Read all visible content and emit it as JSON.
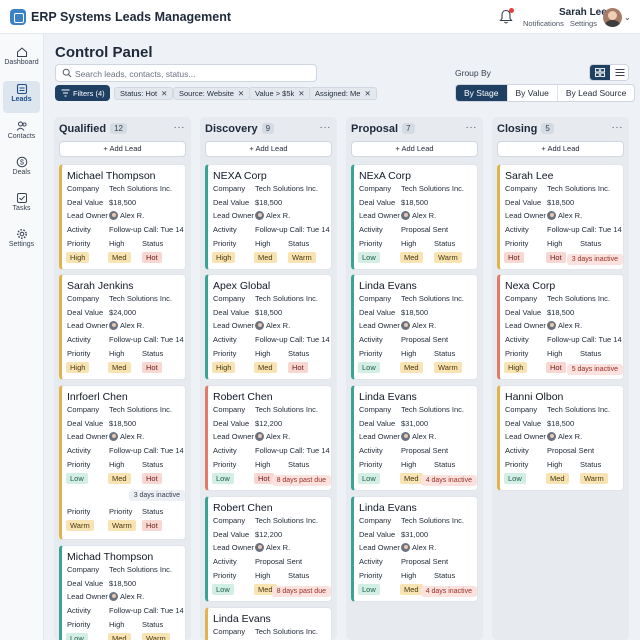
{
  "app": {
    "title": "ERP Systems",
    "module": "Leads Management"
  },
  "user": {
    "name": "Sarah Lee",
    "notifications_label": "Notifications",
    "settings_label": "Settings"
  },
  "sidebar": [
    {
      "label": "Dashboard",
      "icon": "home-icon",
      "active": false
    },
    {
      "label": "Leads",
      "icon": "leads-icon",
      "active": true
    },
    {
      "label": "Contacts",
      "icon": "contacts-icon",
      "active": false
    },
    {
      "label": "Deals",
      "icon": "dollar-icon",
      "active": false
    },
    {
      "label": "Tasks",
      "icon": "tasks-icon",
      "active": false
    },
    {
      "label": "Settings",
      "icon": "gear-icon",
      "active": false
    }
  ],
  "page": {
    "title": "Control Panel"
  },
  "search": {
    "placeholder": "Search leads, contacts, status..."
  },
  "filters": {
    "button_label": "Filters (4)",
    "chips": [
      "Status: Hot",
      "Source: Website",
      "Value > $5k",
      "Assigned: Me"
    ]
  },
  "group_by": {
    "label": "Group By",
    "options": [
      "By Stage",
      "By Value",
      "By Lead Source"
    ],
    "selected": "By Stage"
  },
  "labels": {
    "add_lead": "+ Add Lead",
    "company": "Company",
    "deal_value": "Deal Value",
    "lead_owner": "Lead Owner",
    "activity": "Activity",
    "priority": "Priority",
    "status": "Status"
  },
  "columns": [
    {
      "title": "Qualified",
      "count": "12",
      "cards": [
        {
          "name": "Michael Thompson",
          "company": "Tech Solutions Inc.",
          "value": "$18,500",
          "owner": "Alex R.",
          "activity_label": "Activity",
          "activity": "Follow-up Call: Tue 14",
          "priority_label": "Priority",
          "status_label": "Status",
          "priority_val": "High",
          "tags": [
            "High",
            "Med",
            "Hot"
          ],
          "accent": "gold"
        },
        {
          "name": "Sarah Jenkins",
          "company": "Tech Solutions Inc.",
          "value": "$24,000",
          "owner": "Alex R.",
          "activity_label": "Activity",
          "activity": "Follow-up Call: Tue 14",
          "priority_label": "Priority",
          "status_label": "Status",
          "priority_val": "High",
          "tags": [
            "High",
            "Med",
            "Hot"
          ],
          "accent": "gold"
        },
        {
          "name": "Inrfoerl Chen",
          "company": "Tech Solutions Inc.",
          "value": "$18,500",
          "owner": "Alex R.",
          "activity_label": "Activity",
          "activity": "Follow-up Call: Tue 14",
          "priority_label": "Priority",
          "status_label": "Status",
          "priority_val": "High",
          "tags": [
            "Low",
            "Med",
            "Hot"
          ],
          "warning": "3 days inactive",
          "warning_type": "gray",
          "extra_row": {
            "priority_label": "Priority",
            "priority_val": "Priority",
            "status_label": "Status",
            "tags": [
              "Warm",
              "Warm",
              "Hot"
            ]
          },
          "accent": "gold"
        },
        {
          "name": "Michad Thompson",
          "company": "Tech Solutions Inc.",
          "value": "$18,500",
          "owner": "Alex R.",
          "activity_label": "Activity",
          "activity": "Follow-up Call: Tue 14",
          "priority_label": "Priority",
          "status_label": "Status",
          "priority_val": "High",
          "tags": [
            "Low",
            "Med",
            "Warm"
          ],
          "accent": "teal"
        }
      ]
    },
    {
      "title": "Discovery",
      "count": "9",
      "cards": [
        {
          "name": "NEXA Corp",
          "company": "Tech Solutions Inc.",
          "value": "$18,500",
          "owner": "Alex R.",
          "activity_label": "Activity",
          "activity": "Follow-up Call: Tue 14",
          "priority_label": "Priority",
          "status_label": "Status",
          "priority_val": "High",
          "tags": [
            "High",
            "Med",
            "Warm"
          ],
          "accent": "teal"
        },
        {
          "name": "Apex Global",
          "company": "Tech Solutions Inc.",
          "value": "$18,500",
          "owner": "Alex R.",
          "activity_label": "Activity",
          "activity": "Follow-up Call: Tue 14",
          "priority_label": "Priority",
          "status_label": "Status",
          "priority_val": "High",
          "tags": [
            "High",
            "Med",
            "Hot"
          ],
          "accent": "teal"
        },
        {
          "name": "Robert Chen",
          "company": "Tech Solutions Inc.",
          "value": "$12,200",
          "owner": "Alex R.",
          "activity_label": "Activity",
          "activity": "Follow-up Call: Tue 14",
          "priority_label": "Priority",
          "status_label": "Status",
          "priority_val": "High",
          "tags": [
            "Low",
            "Hot"
          ],
          "warning": "8 days past due",
          "warning_type": "red",
          "accent": "red"
        },
        {
          "name": "Robert Chen",
          "company": "Tech Solutions Inc.",
          "value": "$12,200",
          "owner": "Alex R.",
          "activity_label": "Activity",
          "activity": "Proposal Sent",
          "priority_label": "Priority",
          "status_label": "Status",
          "priority_val": "High",
          "tags": [
            "Low",
            "Med"
          ],
          "warning": "8 days past due",
          "warning_type": "red",
          "accent": "teal"
        },
        {
          "name": "Linda Evans",
          "company": "Tech Solutions Inc.",
          "value": "",
          "owner": "",
          "activity": "",
          "tags": [],
          "accent": "gold"
        }
      ]
    },
    {
      "title": "Proposal",
      "count": "7",
      "cards": [
        {
          "name": "NExA Corp",
          "company": "Tech Solutions Inc.",
          "value": "$18,500",
          "owner": "Alex R.",
          "activity_label": "Activity",
          "activity": "Proposal Sent",
          "priority_label": "Priority",
          "status_label": "Status",
          "priority_val": "High",
          "tags": [
            "Low",
            "Med",
            "Warm"
          ],
          "accent": "teal"
        },
        {
          "name": "Linda Evans",
          "company": "Tech Solutions Inc.",
          "value": "$18,500",
          "owner": "Alex R.",
          "activity_label": "Activity",
          "activity": "Proposal Sent",
          "priority_label": "Priority",
          "status_label": "Status",
          "priority_val": "High",
          "tags": [
            "Low",
            "Med",
            "Warm"
          ],
          "accent": "teal"
        },
        {
          "name": "Linda Evans",
          "company": "Tech Solutions Inc.",
          "value": "$31,000",
          "owner": "Alex R.",
          "activity_label": "Activity",
          "activity": "Proposal Sent",
          "priority_label": "Priority",
          "status_label": "Status",
          "priority_val": "High",
          "tags": [
            "Low",
            "Med"
          ],
          "warning": "4 days inactive",
          "warning_type": "red",
          "accent": "teal"
        },
        {
          "name": "Linda Evans",
          "company": "Tech Solutions Inc.",
          "value": "$31,000",
          "owner": "Alex R.",
          "activity_label": "Activity",
          "activity": "Proposal Sent",
          "priority_label": "Priority",
          "status_label": "Status",
          "priority_val": "High",
          "tags": [
            "Low",
            "Med"
          ],
          "warning": "4 days inactive",
          "warning_type": "red",
          "accent": "teal"
        }
      ]
    },
    {
      "title": "Closing",
      "count": "5",
      "cards": [
        {
          "name": "Sarah Lee",
          "company": "Tech Solutions Inc.",
          "value": "$18,500",
          "owner": "Alex R.",
          "activity_label": "Activity",
          "activity": "Follow-up Call: Tue 14",
          "priority_label": "Priority",
          "status_label": "Status",
          "priority_val": "High",
          "tags": [
            "Hot",
            "Hot"
          ],
          "warning": "3 days inactive",
          "warning_type": "red",
          "accent": "gold"
        },
        {
          "name": "Nexa Corp",
          "company": "Tech Solutions Inc.",
          "value": "$18,500",
          "owner": "Alex R.",
          "activity_label": "Activity",
          "activity": "Follow-up Call: Tue 14",
          "priority_label": "Priority",
          "status_label": "Status",
          "priority_val": "High",
          "tags": [
            "High",
            "Hot"
          ],
          "warning": "5 days inactive",
          "warning_type": "red",
          "accent": "red"
        },
        {
          "name": "Hanni Olbon",
          "company": "Tech Solutions Inc.",
          "value": "$18,500",
          "owner": "Alex R.",
          "activity_label": "Activity",
          "activity": "Proposal Sent",
          "priority_label": "Priority",
          "status_label": "Status",
          "priority_val": "High",
          "tags": [
            "Low",
            "Med",
            "Warm"
          ],
          "accent": "gold"
        }
      ]
    }
  ],
  "colors": {
    "primary": "#1f3f63",
    "accent_gold": "#e0b34e",
    "accent_teal": "#3aa394",
    "accent_red": "#e27a68"
  }
}
